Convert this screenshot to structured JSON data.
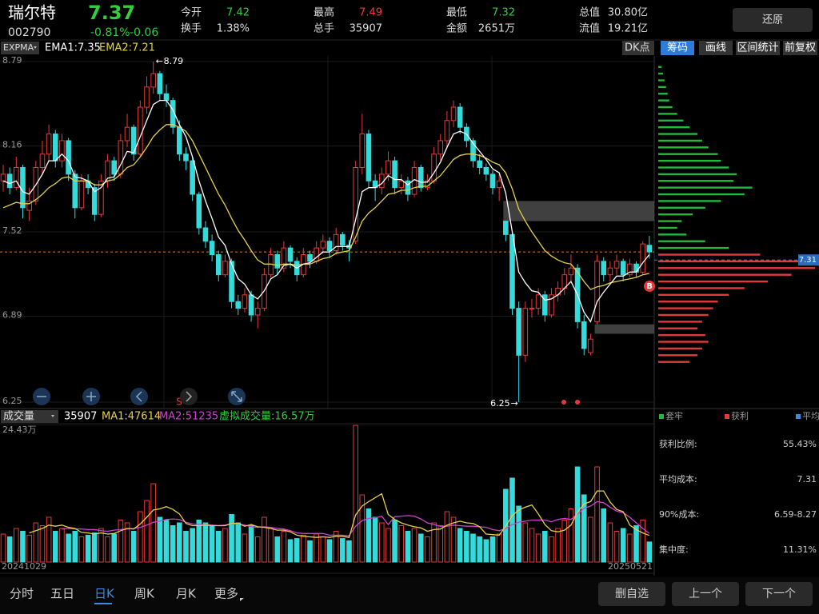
{
  "header": {
    "name": "瑞尔特",
    "code": "002790",
    "price": "7.37",
    "change_pct": "-0.81%",
    "change": "-0.06",
    "fields": [
      {
        "label": "今开",
        "value": "7.42"
      },
      {
        "label": "换手",
        "value": "1.38%"
      },
      {
        "label": "最高",
        "value": "7.49"
      },
      {
        "label": "总手",
        "value": "35907"
      },
      {
        "label": "最低",
        "value": "7.32"
      },
      {
        "label": "金额",
        "value": "2651万"
      },
      {
        "label": "总值",
        "value": "30.80亿"
      },
      {
        "label": "流值",
        "value": "19.21亿"
      }
    ],
    "button": "还原"
  },
  "toolbar": {
    "indicator": "EXPMA",
    "ema1_label": "EMA1:7.35",
    "ema2_label": "EMA2:7.21",
    "dk": "DK点",
    "tabs": [
      "筹码",
      "画线",
      "区间统计",
      "前复权"
    ]
  },
  "chart_data": {
    "type": "candlestick",
    "ylim": [
      6.25,
      8.79
    ],
    "yticks": [
      8.79,
      8.16,
      7.52,
      6.89,
      6.25
    ],
    "up_color": "#e8383a",
    "down_color": "#35dada",
    "ema1_color": "#ffffff",
    "ema2_color": "#e6d04a",
    "candles": [
      [
        7.9,
        8.02,
        7.82,
        7.95
      ],
      [
        7.95,
        8.0,
        7.8,
        7.85
      ],
      [
        7.85,
        8.08,
        7.83,
        8.0
      ],
      [
        8.0,
        8.02,
        7.62,
        7.7
      ],
      [
        7.68,
        7.85,
        7.6,
        7.75
      ],
      [
        7.75,
        8.05,
        7.72,
        8.0
      ],
      [
        8.0,
        8.2,
        7.95,
        8.1
      ],
      [
        8.1,
        8.32,
        8.05,
        8.25
      ],
      [
        8.25,
        8.28,
        8.0,
        8.05
      ],
      [
        8.05,
        8.25,
        8.0,
        8.2
      ],
      [
        8.2,
        8.22,
        7.9,
        7.95
      ],
      [
        7.95,
        7.98,
        7.62,
        7.7
      ],
      [
        7.7,
        7.95,
        7.68,
        7.9
      ],
      [
        7.9,
        7.95,
        7.8,
        7.85
      ],
      [
        7.85,
        7.88,
        7.6,
        7.65
      ],
      [
        7.65,
        7.95,
        7.63,
        7.9
      ],
      [
        7.9,
        8.1,
        7.85,
        8.05
      ],
      [
        8.05,
        8.08,
        7.9,
        7.95
      ],
      [
        7.95,
        8.25,
        7.92,
        8.2
      ],
      [
        8.2,
        8.4,
        8.15,
        8.3
      ],
      [
        8.3,
        8.32,
        8.05,
        8.1
      ],
      [
        8.1,
        8.5,
        8.08,
        8.45
      ],
      [
        8.45,
        8.68,
        8.4,
        8.6
      ],
      [
        8.6,
        8.79,
        8.55,
        8.7
      ],
      [
        8.7,
        8.72,
        8.5,
        8.55
      ],
      [
        8.55,
        8.62,
        8.45,
        8.5
      ],
      [
        8.5,
        8.52,
        8.25,
        8.3
      ],
      [
        8.3,
        8.35,
        8.05,
        8.1
      ],
      [
        8.1,
        8.15,
        7.98,
        8.05
      ],
      [
        8.05,
        8.08,
        7.75,
        7.8
      ],
      [
        7.8,
        7.82,
        7.5,
        7.55
      ],
      [
        7.55,
        7.6,
        7.4,
        7.45
      ],
      [
        7.45,
        7.5,
        7.3,
        7.35
      ],
      [
        7.35,
        7.38,
        7.15,
        7.2
      ],
      [
        7.2,
        7.35,
        7.18,
        7.3
      ],
      [
        7.3,
        7.32,
        6.95,
        7.0
      ],
      [
        7.0,
        7.05,
        6.9,
        6.95
      ],
      [
        6.95,
        7.1,
        6.92,
        7.05
      ],
      [
        7.05,
        7.08,
        6.85,
        6.9
      ],
      [
        6.9,
        7.0,
        6.8,
        6.95
      ],
      [
        6.95,
        7.25,
        6.93,
        7.2
      ],
      [
        7.2,
        7.4,
        7.18,
        7.35
      ],
      [
        7.35,
        7.38,
        7.2,
        7.25
      ],
      [
        7.25,
        7.45,
        7.22,
        7.4
      ],
      [
        7.4,
        7.42,
        7.25,
        7.3
      ],
      [
        7.3,
        7.33,
        7.15,
        7.2
      ],
      [
        7.2,
        7.4,
        7.18,
        7.35
      ],
      [
        7.35,
        7.38,
        7.25,
        7.3
      ],
      [
        7.3,
        7.45,
        7.28,
        7.4
      ],
      [
        7.4,
        7.5,
        7.36,
        7.45
      ],
      [
        7.45,
        7.48,
        7.33,
        7.38
      ],
      [
        7.38,
        7.55,
        7.35,
        7.5
      ],
      [
        7.5,
        7.52,
        7.38,
        7.42
      ],
      [
        7.42,
        7.46,
        7.3,
        7.4
      ],
      [
        7.45,
        8.05,
        7.43,
        8.0
      ],
      [
        8.0,
        8.4,
        7.95,
        8.25
      ],
      [
        8.25,
        8.28,
        7.85,
        7.9
      ],
      [
        7.9,
        7.95,
        7.75,
        7.85
      ],
      [
        7.85,
        8.0,
        7.8,
        7.95
      ],
      [
        7.95,
        8.12,
        7.9,
        8.05
      ],
      [
        8.05,
        8.08,
        7.8,
        7.85
      ],
      [
        7.85,
        7.95,
        7.8,
        7.9
      ],
      [
        7.9,
        7.93,
        7.75,
        7.8
      ],
      [
        7.8,
        8.05,
        7.78,
        8.0
      ],
      [
        8.0,
        8.02,
        7.82,
        7.85
      ],
      [
        7.85,
        7.95,
        7.83,
        7.9
      ],
      [
        7.9,
        8.15,
        7.88,
        8.1
      ],
      [
        8.1,
        8.25,
        8.05,
        8.2
      ],
      [
        8.2,
        8.42,
        8.15,
        8.35
      ],
      [
        8.35,
        8.5,
        8.3,
        8.45
      ],
      [
        8.45,
        8.48,
        8.25,
        8.3
      ],
      [
        8.3,
        8.33,
        8.15,
        8.2
      ],
      [
        8.2,
        8.22,
        8.0,
        8.05
      ],
      [
        8.05,
        8.1,
        7.95,
        8.0
      ],
      [
        8.0,
        8.03,
        7.9,
        7.95
      ],
      [
        7.95,
        7.98,
        7.8,
        7.85
      ],
      [
        7.85,
        7.95,
        7.75,
        7.9
      ],
      [
        7.6,
        7.6,
        7.45,
        7.5
      ],
      [
        7.5,
        7.52,
        6.9,
        6.95
      ],
      [
        6.95,
        7.0,
        6.25,
        6.6
      ],
      [
        6.6,
        7.0,
        6.55,
        6.95
      ],
      [
        6.95,
        7.02,
        6.88,
        6.95
      ],
      [
        6.95,
        7.1,
        6.9,
        7.05
      ],
      [
        7.05,
        7.08,
        6.85,
        6.9
      ],
      [
        6.9,
        7.1,
        6.88,
        7.05
      ],
      [
        7.05,
        7.15,
        7.0,
        7.1
      ],
      [
        7.1,
        7.25,
        7.05,
        7.2
      ],
      [
        7.2,
        7.35,
        7.15,
        7.25
      ],
      [
        7.25,
        7.28,
        6.8,
        6.85
      ],
      [
        6.85,
        6.9,
        6.6,
        6.65
      ],
      [
        6.62,
        6.76,
        6.6,
        6.72
      ],
      [
        6.85,
        7.35,
        6.83,
        7.3
      ],
      [
        7.3,
        7.33,
        7.15,
        7.2
      ],
      [
        7.2,
        7.3,
        7.15,
        7.25
      ],
      [
        7.25,
        7.35,
        7.2,
        7.3
      ],
      [
        7.3,
        7.32,
        7.15,
        7.2
      ],
      [
        7.2,
        7.32,
        7.18,
        7.28
      ],
      [
        7.28,
        7.3,
        7.18,
        7.22
      ],
      [
        7.22,
        7.45,
        7.2,
        7.43
      ],
      [
        7.42,
        7.49,
        7.32,
        7.37
      ]
    ],
    "ema1": [
      7.9,
      7.88,
      7.9,
      7.82,
      7.8,
      7.87,
      7.95,
      8.05,
      8.05,
      8.1,
      8.05,
      7.93,
      7.92,
      7.9,
      7.82,
      7.85,
      7.92,
      7.93,
      8.02,
      8.12,
      8.11,
      8.23,
      8.35,
      8.47,
      8.5,
      8.5,
      8.43,
      8.32,
      8.23,
      8.08,
      7.9,
      7.75,
      7.62,
      7.48,
      7.42,
      7.28,
      7.17,
      7.13,
      7.05,
      7.02,
      7.08,
      7.17,
      7.2,
      7.27,
      7.28,
      7.25,
      7.28,
      7.29,
      7.33,
      7.37,
      7.37,
      7.41,
      7.41,
      7.41,
      7.61,
      7.82,
      7.85,
      7.85,
      7.88,
      7.94,
      7.91,
      7.91,
      7.87,
      7.91,
      7.89,
      7.89,
      7.96,
      8.04,
      8.15,
      8.25,
      8.27,
      8.25,
      8.18,
      8.12,
      8.06,
      7.99,
      7.96,
      7.81,
      7.52,
      7.22,
      7.14,
      7.08,
      7.07,
      7.01,
      7.02,
      7.05,
      7.1,
      7.15,
      7.05,
      6.92,
      6.85,
      7.0,
      7.07,
      7.13,
      7.19,
      7.19,
      7.22,
      7.22,
      7.29,
      7.35
    ],
    "ema2": [
      7.7,
      7.72,
      7.74,
      7.73,
      7.73,
      7.76,
      7.8,
      7.85,
      7.88,
      7.92,
      7.93,
      7.9,
      7.9,
      7.9,
      7.87,
      7.87,
      7.9,
      7.91,
      7.95,
      8.0,
      8.02,
      8.08,
      8.15,
      8.23,
      8.28,
      8.32,
      8.32,
      8.3,
      8.27,
      8.2,
      8.1,
      8.0,
      7.9,
      7.8,
      7.72,
      7.62,
      7.53,
      7.46,
      7.38,
      7.31,
      7.28,
      7.28,
      7.27,
      7.28,
      7.28,
      7.27,
      7.28,
      7.28,
      7.3,
      7.32,
      7.33,
      7.36,
      7.37,
      7.38,
      7.48,
      7.6,
      7.66,
      7.7,
      7.75,
      7.8,
      7.81,
      7.83,
      7.83,
      7.85,
      7.86,
      7.86,
      7.9,
      7.94,
      8.0,
      8.06,
      8.09,
      8.1,
      8.1,
      8.09,
      8.07,
      8.04,
      8.02,
      7.96,
      7.84,
      7.69,
      7.6,
      7.52,
      7.45,
      7.38,
      7.34,
      7.31,
      7.29,
      7.28,
      7.22,
      7.15,
      7.09,
      7.11,
      7.12,
      7.14,
      7.15,
      7.16,
      7.17,
      7.18,
      7.2,
      7.21
    ],
    "gaps": [
      {
        "from": 77,
        "top": 7.75,
        "bottom": 7.6
      },
      {
        "from": 91,
        "top": 6.83,
        "bottom": 6.76
      }
    ],
    "last_price_color": "#e07a30",
    "signal_s": "S",
    "signal_b": "B",
    "volume": {
      "label": "成交量",
      "last": "35907",
      "ma1_label": "MA1:47614",
      "ma2_label": "MA2:51235",
      "virtual": "虚拟成交量:16.57万",
      "ylim": [
        0,
        244300
      ],
      "yticks": [
        {
          "value": 244300,
          "label": "24.43万"
        }
      ],
      "ma1_color": "#e6d04a",
      "ma2_color": "#d040d0",
      "values": [
        50000,
        45000,
        60000,
        55000,
        48000,
        70000,
        65000,
        80000,
        55000,
        60000,
        50000,
        55000,
        45000,
        48000,
        52000,
        60000,
        45000,
        50000,
        75000,
        70000,
        55000,
        90000,
        110000,
        140000,
        80000,
        75000,
        65000,
        70000,
        55000,
        60000,
        75000,
        70000,
        65000,
        55000,
        60000,
        85000,
        70000,
        50000,
        65000,
        45000,
        80000,
        60000,
        45000,
        55000,
        40000,
        42000,
        48000,
        38000,
        50000,
        45000,
        40000,
        55000,
        42000,
        38000,
        244300,
        120000,
        95000,
        80000,
        70000,
        60000,
        75000,
        65000,
        55000,
        60000,
        50000,
        45000,
        70000,
        65000,
        90000,
        80000,
        60000,
        55000,
        50000,
        45000,
        40000,
        45000,
        50000,
        130000,
        150000,
        100000,
        70000,
        60000,
        50000,
        55000,
        45000,
        60000,
        75000,
        95000,
        170000,
        120000,
        80000,
        170000,
        95000,
        70000,
        55000,
        60000,
        50000,
        65000,
        75000,
        35907
      ],
      "ma1": [
        null,
        null,
        null,
        null,
        52000,
        56000,
        60000,
        66000,
        64000,
        66000,
        62000,
        60000,
        53000,
        52000,
        50000,
        52000,
        50000,
        51000,
        56000,
        60000,
        59000,
        68000,
        80000,
        93000,
        95000,
        99000,
        94000,
        86000,
        69000,
        65000,
        65000,
        66000,
        65000,
        65000,
        65000,
        69000,
        69000,
        64000,
        67000,
        63000,
        62000,
        60000,
        57000,
        57000,
        54000,
        48000,
        46000,
        45000,
        44000,
        45000,
        44000,
        46000,
        46000,
        44000,
        84000,
        100000,
        108000,
        115000,
        122000,
        85000,
        76000,
        70000,
        66000,
        63000,
        61000,
        55000,
        58000,
        59000,
        66000,
        70000,
        73000,
        70000,
        69000,
        63000,
        50000,
        49000,
        48000,
        64000,
        83000,
        93000,
        98000,
        102000,
        86000,
        67000,
        56000,
        54000,
        57000,
        66000,
        89000,
        104000,
        108000,
        127000,
        127000,
        107000,
        94000,
        90000,
        66000,
        58000,
        52000,
        47614
      ],
      "ma2": [
        null,
        null,
        null,
        null,
        null,
        null,
        null,
        null,
        null,
        59000,
        60000,
        59000,
        59000,
        58000,
        58000,
        56000,
        55000,
        57000,
        58000,
        59000,
        60000,
        62000,
        66000,
        71000,
        73000,
        76000,
        77000,
        76000,
        71000,
        68000,
        67000,
        67000,
        66000,
        65000,
        66000,
        68000,
        68000,
        66000,
        63000,
        62000,
        63000,
        62000,
        60000,
        59000,
        56000,
        52000,
        51000,
        51000,
        51000,
        51000,
        48000,
        48000,
        48000,
        47000,
        64000,
        74000,
        78000,
        79000,
        82000,
        67000,
        81000,
        82000,
        83000,
        82000,
        77000,
        70000,
        67000,
        64000,
        64000,
        66000,
        65000,
        64000,
        64000,
        63000,
        62000,
        58000,
        56000,
        60000,
        67000,
        71000,
        73000,
        75000,
        75000,
        75000,
        72000,
        76000,
        78000,
        76000,
        86000,
        96000,
        100000,
        108000,
        106000,
        98000,
        91000,
        88000,
        80000,
        70000,
        60000,
        51235
      ]
    },
    "dates": [
      "20241029",
      "20250521"
    ]
  },
  "chips": {
    "xlim": [
      0,
      100
    ],
    "above_color": "#22b83a",
    "below_color": "#e03a3a",
    "avg_cost": 7.31,
    "levels": [
      8.75,
      8.7,
      8.65,
      8.6,
      8.55,
      8.5,
      8.45,
      8.4,
      8.35,
      8.3,
      8.25,
      8.2,
      8.15,
      8.1,
      8.05,
      8.0,
      7.95,
      7.9,
      7.85,
      7.8,
      7.75,
      7.7,
      7.65,
      7.6,
      7.55,
      7.5,
      7.45,
      7.4,
      7.35,
      7.3,
      7.25,
      7.2,
      7.15,
      7.1,
      7.05,
      7.0,
      6.95,
      6.9,
      6.85,
      6.8,
      6.75,
      6.7,
      6.65,
      6.6,
      6.55
    ],
    "values": [
      2,
      3,
      4,
      5,
      6,
      7,
      9,
      12,
      16,
      20,
      25,
      28,
      32,
      38,
      40,
      45,
      50,
      48,
      60,
      55,
      40,
      30,
      22,
      15,
      12,
      18,
      30,
      45,
      65,
      92,
      100,
      85,
      70,
      55,
      45,
      38,
      35,
      32,
      28,
      25,
      30,
      32,
      28,
      25,
      20
    ],
    "legend": [
      "套牢",
      "获利",
      "平均"
    ]
  },
  "stats": [
    {
      "label": "获利比例:",
      "value": "55.43%"
    },
    {
      "label": "平均成本:",
      "value": "7.31"
    },
    {
      "label": "90%成本:",
      "value": "6.59-8.27"
    },
    {
      "label": "集中度:",
      "value": "11.31%"
    }
  ],
  "footer": {
    "tabs": [
      "分时",
      "五日",
      "日K",
      "周K",
      "月K",
      "更多"
    ],
    "buttons": [
      "删自选",
      "上一个",
      "下一个"
    ]
  }
}
